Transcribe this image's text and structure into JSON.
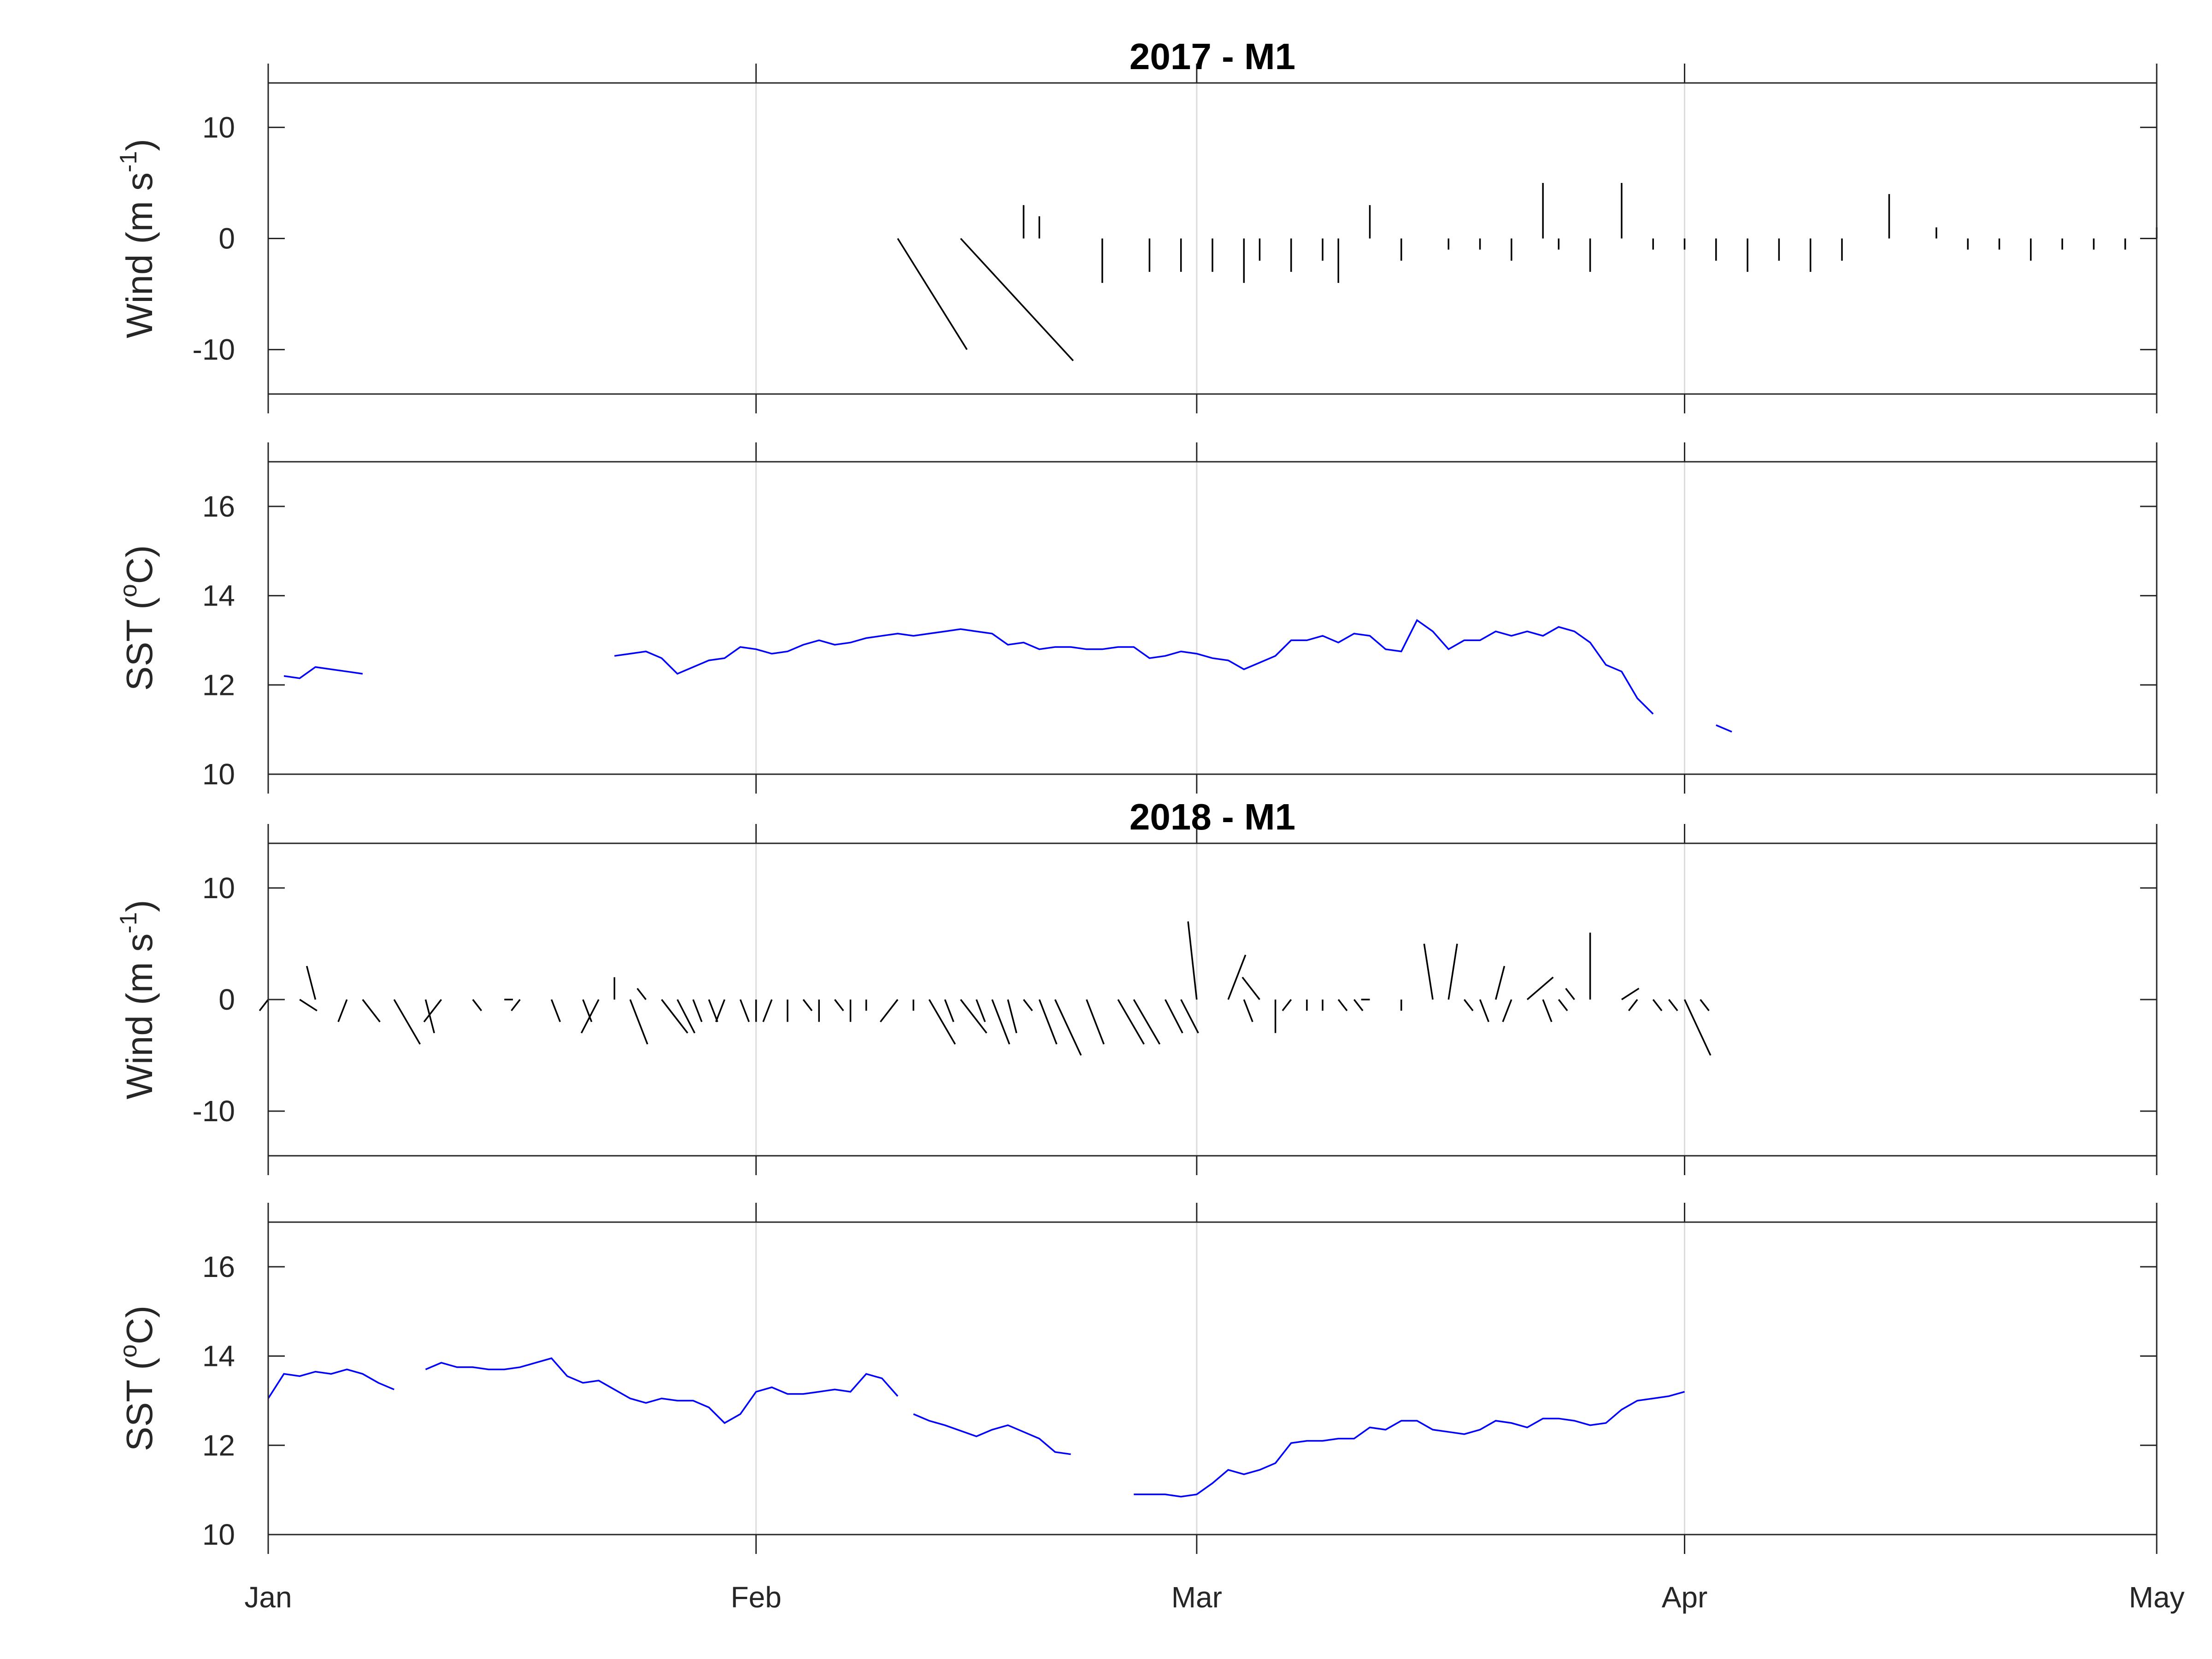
{
  "colors": {
    "sst": "#0000ff",
    "wind": "#000000",
    "grid": "#dcdcdc",
    "axis": "#262626"
  },
  "x_axis": {
    "ticks": [
      {
        "label": "Jan",
        "day": 0
      },
      {
        "label": "Feb",
        "day": 31
      },
      {
        "label": "Mar",
        "day": 59
      },
      {
        "label": "Apr",
        "day": 90
      },
      {
        "label": "May",
        "day": 120
      }
    ]
  },
  "chart_data": [
    {
      "type": "quiver",
      "title": "2017 - M1",
      "ylabel": "Wind (m s-1)",
      "ylabel_base": "Wind (m s",
      "ylabel_sup": "-1",
      "ylabel_end": ")",
      "ylim": [
        -14,
        14
      ],
      "yticks": [
        -10,
        0,
        10
      ],
      "grid": "vertical",
      "series_note": "wind vectors drawn from (day, 0) with components (u, v) in m/s",
      "vectors": [
        [
          40,
          8,
          -10
        ],
        [
          44,
          13,
          -11
        ],
        [
          48,
          0,
          3
        ],
        [
          49,
          0,
          2
        ],
        [
          51,
          0,
          0
        ],
        [
          53,
          0,
          -4
        ],
        [
          56,
          0,
          -3
        ],
        [
          58,
          0,
          -3
        ],
        [
          60,
          0,
          -3
        ],
        [
          62,
          0,
          -4
        ],
        [
          63,
          0,
          -2
        ],
        [
          65,
          0,
          -3
        ],
        [
          67,
          0,
          -2
        ],
        [
          68,
          0,
          -4
        ],
        [
          70,
          0,
          3
        ],
        [
          72,
          0,
          -2
        ],
        [
          74,
          0,
          0
        ],
        [
          75,
          0,
          -1
        ],
        [
          77,
          0,
          -1
        ],
        [
          79,
          0,
          -2
        ],
        [
          81,
          0,
          5
        ],
        [
          82,
          0,
          -1
        ],
        [
          84,
          0,
          -3
        ],
        [
          86,
          0,
          5
        ],
        [
          88,
          0,
          -1
        ],
        [
          90,
          0,
          -1
        ],
        [
          92,
          0,
          -2
        ],
        [
          94,
          0,
          -3
        ],
        [
          96,
          0,
          -2
        ],
        [
          98,
          0,
          -3
        ],
        [
          100,
          0,
          -2
        ],
        [
          103,
          0,
          4
        ],
        [
          106,
          0,
          1
        ],
        [
          108,
          0,
          -1
        ],
        [
          110,
          0,
          -1
        ],
        [
          112,
          0,
          -2
        ],
        [
          114,
          0,
          -1
        ],
        [
          116,
          0,
          -1
        ],
        [
          118,
          0,
          -1
        ],
        [
          120,
          0,
          1
        ]
      ]
    },
    {
      "type": "line",
      "title": "",
      "ylabel": "SST (oC)",
      "ylabel_base": "SST (",
      "ylabel_sup": "o",
      "ylabel_end": "C)",
      "ylim": [
        10,
        17
      ],
      "yticks": [
        10,
        12,
        14,
        16
      ],
      "grid": "vertical",
      "x": [
        1,
        2,
        3,
        4,
        5,
        6,
        22,
        23,
        24,
        25,
        26,
        27,
        28,
        29,
        30,
        31,
        32,
        33,
        34,
        35,
        36,
        37,
        38,
        39,
        40,
        41,
        42,
        43,
        44,
        45,
        46,
        47,
        48,
        49,
        50,
        51,
        52,
        53,
        54,
        55,
        56,
        57,
        58,
        59,
        60,
        61,
        62,
        63,
        64,
        65,
        66,
        67,
        68,
        69,
        70,
        71,
        72,
        73,
        74,
        75,
        76,
        77,
        78,
        79,
        80,
        81,
        82,
        83,
        84,
        85,
        86,
        87,
        88,
        89,
        90,
        92,
        93
      ],
      "y": [
        12.2,
        12.15,
        12.4,
        12.35,
        12.3,
        12.25,
        12.65,
        12.7,
        12.75,
        12.6,
        12.25,
        12.4,
        12.55,
        12.6,
        12.85,
        12.8,
        12.7,
        12.75,
        12.9,
        13.0,
        12.9,
        12.95,
        13.05,
        13.1,
        13.15,
        13.1,
        13.15,
        13.2,
        13.25,
        13.2,
        13.15,
        12.9,
        12.95,
        12.8,
        12.85,
        12.85,
        12.8,
        12.8,
        12.85,
        12.85,
        12.6,
        12.65,
        12.75,
        12.7,
        12.6,
        12.55,
        12.35,
        12.5,
        12.65,
        13.0,
        13.0,
        13.1,
        12.95,
        13.15,
        13.1,
        12.8,
        12.75,
        13.45,
        13.2,
        12.8,
        13.0,
        13.0,
        13.2,
        13.1,
        13.2,
        13.1,
        13.3,
        13.2,
        12.95,
        12.45,
        12.3,
        11.7,
        11.35,
        null,
        null,
        11.1,
        10.95
      ],
      "segments": [
        [
          1,
          6
        ],
        [
          22,
          89
        ],
        [
          92,
          93
        ]
      ]
    },
    {
      "type": "quiver",
      "title": "2018 - M1",
      "ylabel": "Wind (m s-1)",
      "ylabel_base": "Wind (m s",
      "ylabel_sup": "-1",
      "ylabel_end": ")",
      "ylim": [
        -14,
        14
      ],
      "yticks": [
        -10,
        0,
        10
      ],
      "grid": "vertical",
      "vectors": [
        [
          0,
          -1,
          -1
        ],
        [
          2,
          2,
          -1
        ],
        [
          3,
          -1,
          3
        ],
        [
          5,
          -1,
          -2
        ],
        [
          6,
          2,
          -2
        ],
        [
          8,
          3,
          -4
        ],
        [
          10,
          1,
          -3
        ],
        [
          11,
          -2,
          -2
        ],
        [
          13,
          1,
          -1
        ],
        [
          15,
          1,
          0
        ],
        [
          16,
          -1,
          -1
        ],
        [
          18,
          1,
          -2
        ],
        [
          20,
          1,
          -2
        ],
        [
          21,
          -2,
          -3
        ],
        [
          22,
          0,
          2
        ],
        [
          23,
          2,
          -4
        ],
        [
          24,
          -1,
          1
        ],
        [
          25,
          3,
          -3
        ],
        [
          26,
          2,
          -3
        ],
        [
          27,
          1,
          -2
        ],
        [
          28,
          1,
          -2
        ],
        [
          29,
          -1,
          -2
        ],
        [
          30,
          1,
          -2
        ],
        [
          31,
          0,
          -2
        ],
        [
          32,
          -1,
          -2
        ],
        [
          33,
          0,
          -2
        ],
        [
          34,
          1,
          -1
        ],
        [
          35,
          0,
          -2
        ],
        [
          36,
          1,
          -1
        ],
        [
          37,
          0,
          -2
        ],
        [
          38,
          0,
          -1
        ],
        [
          40,
          -2,
          -2
        ],
        [
          41,
          0,
          -1
        ],
        [
          42,
          3,
          -4
        ],
        [
          43,
          1,
          -2
        ],
        [
          44,
          3,
          -3
        ],
        [
          45,
          1,
          -2
        ],
        [
          46,
          2,
          -4
        ],
        [
          47,
          1,
          -3
        ],
        [
          48,
          1,
          -1
        ],
        [
          49,
          2,
          -4
        ],
        [
          50,
          3,
          -5
        ],
        [
          52,
          2,
          -4
        ],
        [
          54,
          3,
          -4
        ],
        [
          55,
          3,
          -4
        ],
        [
          57,
          2,
          -3
        ],
        [
          58,
          2,
          -3
        ],
        [
          59,
          -1,
          7
        ],
        [
          60,
          0,
          0
        ],
        [
          61,
          2,
          4
        ],
        [
          62,
          1,
          -2
        ],
        [
          63,
          -2,
          2
        ],
        [
          64,
          0,
          -3
        ],
        [
          65,
          -1,
          -1
        ],
        [
          66,
          0,
          -1
        ],
        [
          67,
          0,
          -1
        ],
        [
          68,
          1,
          -1
        ],
        [
          69,
          1,
          -1
        ],
        [
          70,
          -1,
          0
        ],
        [
          72,
          0,
          -1
        ],
        [
          74,
          -1,
          5
        ],
        [
          75,
          1,
          5
        ],
        [
          76,
          1,
          -1
        ],
        [
          77,
          1,
          -2
        ],
        [
          78,
          1,
          3
        ],
        [
          79,
          -1,
          -2
        ],
        [
          80,
          3,
          2
        ],
        [
          81,
          1,
          -2
        ],
        [
          82,
          1,
          -1
        ],
        [
          83,
          -1,
          1
        ],
        [
          84,
          0,
          6
        ],
        [
          86,
          2,
          1
        ],
        [
          87,
          -1,
          -1
        ],
        [
          88,
          1,
          -1
        ],
        [
          89,
          1,
          -1
        ],
        [
          90,
          3,
          -5
        ],
        [
          91,
          1,
          -1
        ]
      ]
    },
    {
      "type": "line",
      "title": "",
      "ylabel": "SST (oC)",
      "ylabel_base": "SST (",
      "ylabel_sup": "o",
      "ylabel_end": "C)",
      "ylim": [
        10,
        17
      ],
      "yticks": [
        10,
        12,
        14,
        16
      ],
      "grid": "vertical",
      "x": [
        0,
        1,
        2,
        3,
        4,
        5,
        6,
        7,
        8,
        10,
        11,
        12,
        13,
        14,
        15,
        16,
        17,
        18,
        19,
        20,
        21,
        22,
        23,
        24,
        25,
        26,
        27,
        28,
        29,
        30,
        31,
        32,
        33,
        34,
        35,
        36,
        37,
        38,
        39,
        40,
        41,
        42,
        43,
        45,
        46,
        47,
        48,
        49,
        50,
        51,
        52,
        53,
        54,
        55,
        56,
        57,
        58,
        59,
        60,
        61,
        62,
        63,
        64,
        65,
        66,
        67,
        68,
        69,
        70,
        71,
        72,
        73,
        74,
        75,
        76,
        77,
        78,
        79,
        80,
        81,
        82,
        83,
        84,
        85,
        86,
        87,
        88,
        89,
        90
      ],
      "y": [
        13.05,
        13.6,
        13.55,
        13.65,
        13.6,
        13.7,
        13.6,
        13.4,
        13.25,
        13.7,
        13.85,
        13.75,
        13.75,
        13.7,
        13.7,
        13.75,
        13.85,
        13.95,
        13.55,
        13.4,
        13.45,
        13.25,
        13.05,
        12.95,
        13.05,
        13.0,
        13.0,
        12.85,
        12.5,
        12.7,
        13.2,
        13.3,
        13.15,
        13.15,
        13.2,
        13.25,
        13.2,
        13.6,
        13.5,
        13.1,
        12.7,
        12.55,
        12.45,
        12.2,
        12.35,
        12.45,
        12.3,
        12.15,
        11.85,
        11.8,
        11.45,
        11.3,
        11.3,
        10.9,
        10.9,
        10.9,
        10.85,
        10.9,
        11.15,
        11.45,
        11.35,
        11.45,
        11.6,
        12.05,
        12.1,
        12.1,
        12.15,
        12.15,
        12.4,
        12.35,
        12.55,
        12.55,
        12.35,
        12.3,
        12.25,
        12.35,
        12.55,
        12.5,
        12.4,
        12.6,
        12.6,
        12.55,
        12.45,
        12.5,
        12.8,
        13.0,
        13.05,
        13.1,
        13.2
      ],
      "segments": [
        [
          0,
          8
        ],
        [
          10,
          40
        ],
        [
          41,
          51
        ],
        [
          55,
          90
        ]
      ]
    }
  ]
}
